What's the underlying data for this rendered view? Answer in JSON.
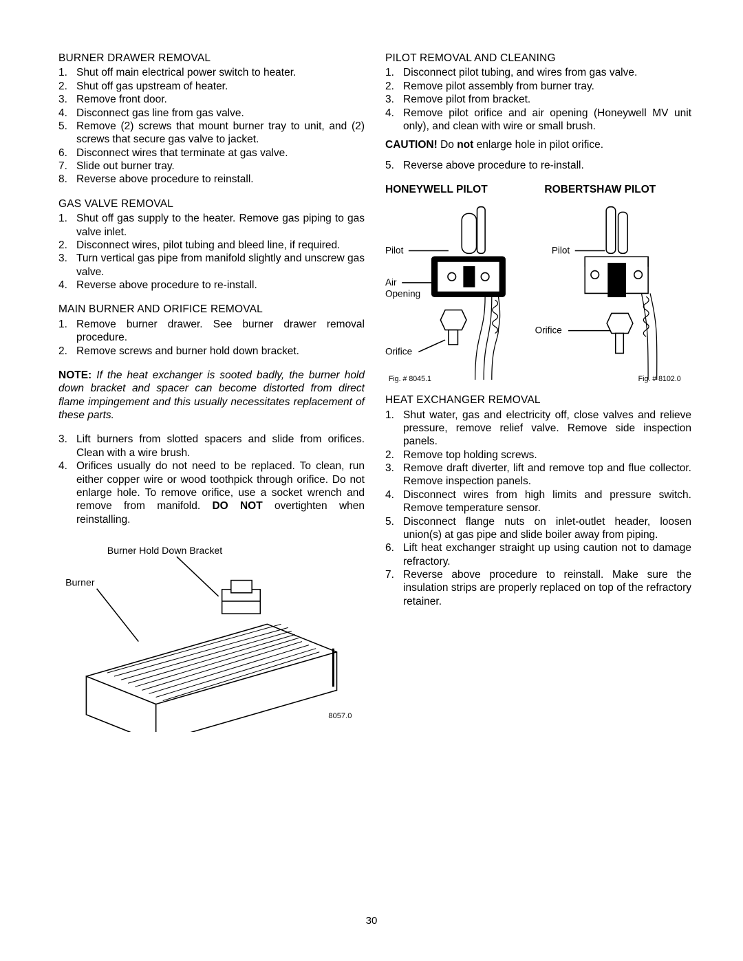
{
  "page_number": "30",
  "left": {
    "burner_drawer": {
      "heading": "BURNER DRAWER REMOVAL",
      "items": [
        "Shut off main electrical power switch to heater.",
        "Shut off gas upstream of heater.",
        "Remove front door.",
        "Disconnect gas line from gas valve.",
        "Remove (2) screws that mount burner tray to unit, and (2) screws that secure gas valve to jacket.",
        "Disconnect wires that terminate at gas valve.",
        "Slide out burner tray.",
        "Reverse above procedure to reinstall."
      ]
    },
    "gas_valve": {
      "heading": "GAS VALVE REMOVAL",
      "items": [
        "Shut off gas supply to the heater. Remove gas piping to gas valve inlet.",
        "Disconnect wires, pilot tubing and bleed line, if required.",
        "Turn vertical gas pipe from manifold slightly and unscrew gas valve.",
        "Reverse above procedure to re-install."
      ]
    },
    "main_burner": {
      "heading": "MAIN BURNER AND ORIFICE REMOVAL",
      "items_a": [
        "Remove burner drawer. See burner drawer removal procedure.",
        "Remove screws and burner hold down bracket."
      ],
      "note_lead": "NOTE:",
      "note_body": " If the heat exchanger is sooted badly, the burner hold down bracket and spacer can become distorted from direct flame impingement and this usually necessitates replacement of these parts.",
      "items_b_start": 3,
      "items_b": [
        "Lift burners from slotted spacers and slide from orifices.  Clean with a wire brush.",
        "Orifices usually do not need to be replaced. To clean, run either copper wire or wood toothpick through orifice. Do not enlarge hole. To remove orifice, use a socket wrench and remove from manifold. "
      ],
      "donot": "DO NOT",
      "item4_tail": " overtighten when reinstalling."
    },
    "burner_diagram": {
      "label_bracket": "Burner Hold Down Bracket",
      "label_burner": "Burner",
      "fig": "8057.0",
      "stroke": "#000000",
      "fill": "#ffffff"
    }
  },
  "right": {
    "pilot_removal": {
      "heading": "PILOT REMOVAL AND CLEANING",
      "items": [
        "Disconnect pilot tubing, and wires from gas valve.",
        "Remove pilot assembly from burner tray.",
        "Remove pilot from bracket.",
        "Remove pilot orifice and air opening (Honeywell MV unit only), and clean with wire or small brush."
      ],
      "caution_lead": "CAUTION!",
      "caution_mid": " Do ",
      "caution_not": "not",
      "caution_tail": " enlarge hole in pilot orifice.",
      "item5": "Reverse above procedure to re-install."
    },
    "pilot_diagram": {
      "head_left": "HONEYWELL PILOT",
      "head_right": "ROBERTSHAW PILOT",
      "label_pilot": "Pilot",
      "label_air": "Air",
      "label_opening": "Opening",
      "label_orifice": "Orifice",
      "fig_left": "Fig. # 8045.1",
      "fig_right": "Fig. # 8102.0",
      "stroke": "#000000"
    },
    "heat_exchanger": {
      "heading": "HEAT EXCHANGER REMOVAL",
      "items": [
        "Shut water, gas and electricity off, close valves and relieve pressure, remove relief valve. Remove side inspection panels.",
        "Remove top holding screws.",
        "Remove draft diverter, lift and remove top and flue collector. Remove inspection panels.",
        "Disconnect wires from high limits and pressure switch. Remove temperature sensor.",
        "Disconnect flange nuts on inlet-outlet header, loosen union(s) at gas pipe and slide boiler away from piping.",
        "Lift heat exchanger straight up using caution not to damage refractory.",
        "Reverse above procedure to reinstall. Make sure the insulation strips are properly replaced on top of the refractory retainer."
      ]
    }
  }
}
